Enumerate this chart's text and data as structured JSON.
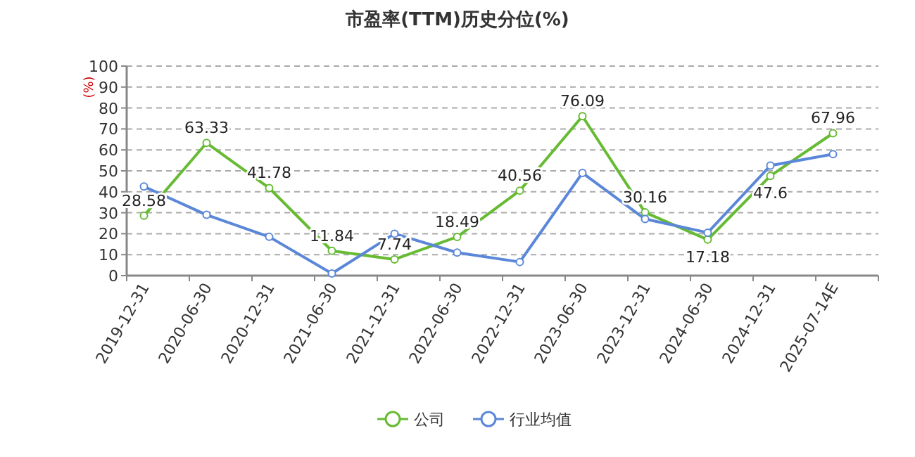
{
  "chart_data": {
    "type": "line",
    "title": "市盈率(TTM)历史分位(%)",
    "ylabel": "(%)",
    "categories": [
      "2019-12-31",
      "2020-06-30",
      "2020-12-31",
      "2021-06-30",
      "2021-12-31",
      "2022-06-30",
      "2022-12-31",
      "2023-06-30",
      "2023-12-31",
      "2024-06-30",
      "2024-12-31",
      "2025-07-14E"
    ],
    "series": [
      {
        "name": "公司",
        "color": "#66bb33",
        "values": [
          28.58,
          63.33,
          41.78,
          11.84,
          7.74,
          18.49,
          40.56,
          76.09,
          30.16,
          17.18,
          47.6,
          67.96
        ],
        "value_labels": [
          "28.58",
          "63.33",
          "41.78",
          "11.84",
          "7.74",
          "18.49",
          "40.56",
          "76.09",
          "30.16",
          "17.18",
          "47.6",
          "67.96"
        ]
      },
      {
        "name": "行业均值",
        "color": "#5b87d9",
        "values": [
          42.5,
          29,
          18.5,
          1,
          20,
          11,
          6.5,
          49,
          27,
          20.5,
          52.5,
          58
        ]
      }
    ],
    "ylim": [
      0,
      100
    ],
    "yticks": [
      0,
      10,
      20,
      30,
      40,
      50,
      60,
      70,
      80,
      90,
      100
    ],
    "grid": "y",
    "legend": "bottom",
    "marker": "circle"
  }
}
